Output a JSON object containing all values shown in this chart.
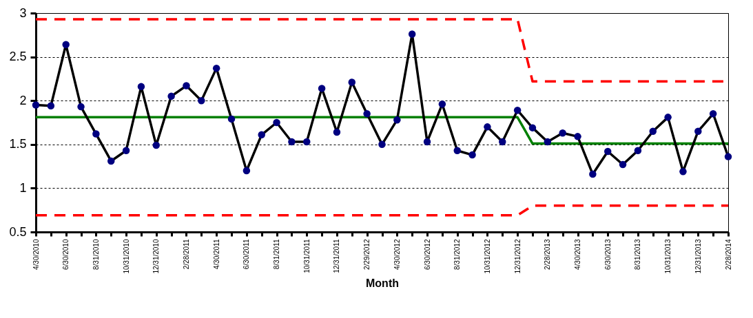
{
  "chart_data": {
    "type": "line",
    "xlabel": "Month",
    "categories": [
      "4/30/2010",
      null,
      "6/30/2010",
      null,
      "8/31/2010",
      null,
      "10/31/2010",
      null,
      "12/31/2010",
      null,
      "2/28/2011",
      null,
      "4/30/2011",
      null,
      "6/30/2011",
      null,
      "8/31/2011",
      null,
      "10/31/2011",
      null,
      "12/31/2011",
      null,
      "2/29/2012",
      null,
      "4/30/2012",
      null,
      "6/30/2012",
      null,
      "8/31/2012",
      null,
      "10/31/2012",
      null,
      "12/31/2012",
      null,
      "2/28/2013",
      null,
      "4/30/2013",
      null,
      "6/30/2013",
      null,
      "8/31/2013",
      null,
      "10/31/2013",
      null,
      "12/31/2013",
      null,
      "2/28/2014"
    ],
    "series": [
      {
        "color": "#ff0000",
        "line_style": "dashed",
        "marker": "none",
        "values": [
          2.93,
          2.93,
          2.93,
          2.93,
          2.93,
          2.93,
          2.93,
          2.93,
          2.93,
          2.93,
          2.93,
          2.93,
          2.93,
          2.93,
          2.93,
          2.93,
          2.93,
          2.93,
          2.93,
          2.93,
          2.93,
          2.93,
          2.93,
          2.93,
          2.93,
          2.93,
          2.93,
          2.93,
          2.93,
          2.93,
          2.93,
          2.93,
          2.93,
          2.22,
          2.22,
          2.22,
          2.22,
          2.22,
          2.22,
          2.22,
          2.22,
          2.22,
          2.22,
          2.22,
          2.22,
          2.22,
          2.22
        ]
      },
      {
        "color": "#ff0000",
        "line_style": "dashed",
        "marker": "none",
        "values": [
          0.69,
          0.69,
          0.69,
          0.69,
          0.69,
          0.69,
          0.69,
          0.69,
          0.69,
          0.69,
          0.69,
          0.69,
          0.69,
          0.69,
          0.69,
          0.69,
          0.69,
          0.69,
          0.69,
          0.69,
          0.69,
          0.69,
          0.69,
          0.69,
          0.69,
          0.69,
          0.69,
          0.69,
          0.69,
          0.69,
          0.69,
          0.69,
          0.69,
          0.8,
          0.8,
          0.8,
          0.8,
          0.8,
          0.8,
          0.8,
          0.8,
          0.8,
          0.8,
          0.8,
          0.8,
          0.8,
          0.8
        ]
      },
      {
        "color": "#008000",
        "line_style": "solid",
        "marker": "none",
        "values": [
          1.81,
          1.81,
          1.81,
          1.81,
          1.81,
          1.81,
          1.81,
          1.81,
          1.81,
          1.81,
          1.81,
          1.81,
          1.81,
          1.81,
          1.81,
          1.81,
          1.81,
          1.81,
          1.81,
          1.81,
          1.81,
          1.81,
          1.81,
          1.81,
          1.81,
          1.81,
          1.81,
          1.81,
          1.81,
          1.81,
          1.81,
          1.81,
          1.81,
          1.51,
          1.51,
          1.51,
          1.51,
          1.51,
          1.51,
          1.51,
          1.51,
          1.51,
          1.51,
          1.51,
          1.51,
          1.51,
          1.51
        ]
      },
      {
        "color": "#000000",
        "line_style": "solid",
        "marker": "circle",
        "values": [
          1.95,
          1.94,
          2.64,
          1.93,
          1.62,
          1.31,
          1.43,
          2.16,
          1.49,
          2.05,
          2.17,
          2.0,
          2.37,
          1.79,
          1.2,
          1.61,
          1.75,
          1.53,
          1.53,
          2.14,
          1.64,
          2.21,
          1.85,
          1.5,
          1.78,
          2.76,
          1.53,
          1.96,
          1.43,
          1.38,
          1.7,
          1.53,
          1.89,
          1.69,
          1.53,
          1.63,
          1.59,
          1.16,
          1.42,
          1.27,
          1.43,
          1.65,
          1.81,
          1.19,
          1.65,
          1.85,
          1.36
        ]
      }
    ],
    "ylim": [
      0.5,
      3
    ],
    "yticks": [
      0.5,
      1,
      1.5,
      2,
      2.5,
      3
    ],
    "grid": "y"
  }
}
